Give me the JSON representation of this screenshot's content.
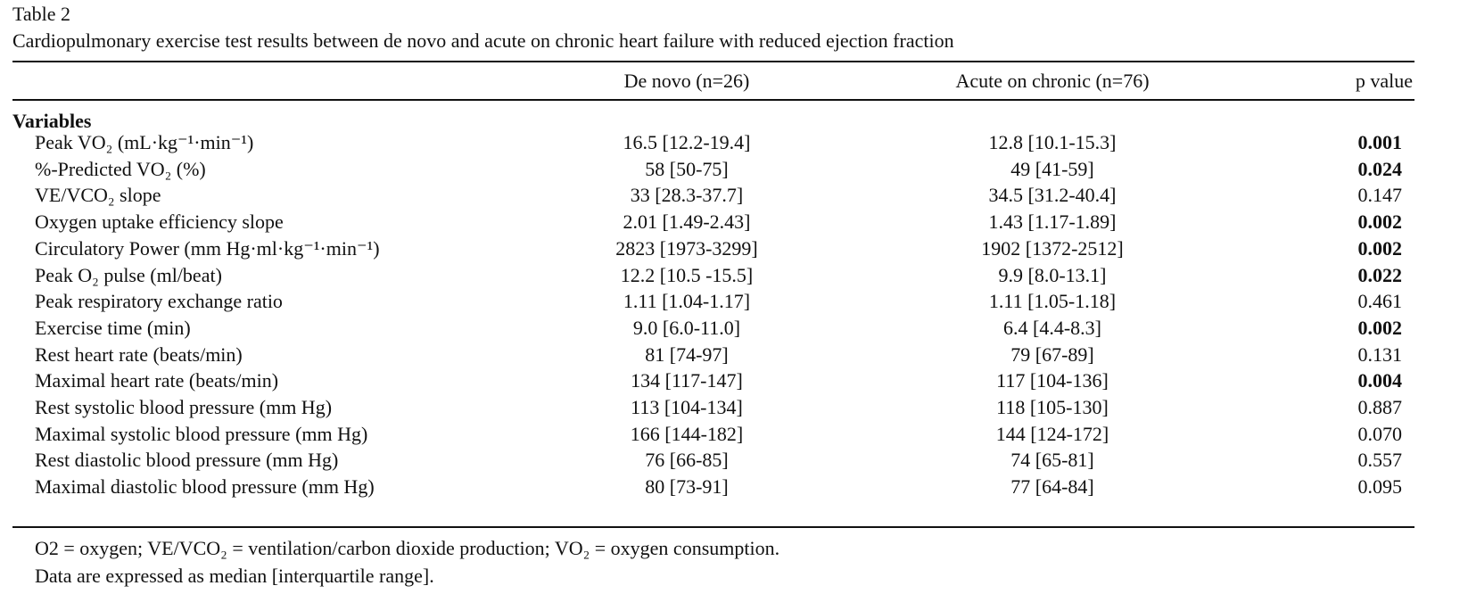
{
  "caption": {
    "label": "Table 2",
    "title": "Cardiopulmonary exercise test results between de novo and acute on chronic heart failure with reduced ejection fraction"
  },
  "header": {
    "de_novo": "De novo (n=26)",
    "acute_on_chronic": "Acute on chronic (n=76)",
    "p_value": "p value"
  },
  "section_title": "Variables",
  "rows": [
    {
      "label": "Peak VO₂ (mL·kg⁻¹·min⁻¹)",
      "de_novo": "16.5 [12.2-19.4]",
      "acute_on_chronic": "12.8 [10.1-15.3]",
      "p": "0.001",
      "significant": true
    },
    {
      "label": "%-Predicted VO₂ (%)",
      "de_novo": "58 [50-75]",
      "acute_on_chronic": "49 [41-59]",
      "p": "0.024",
      "significant": true
    },
    {
      "label": "VE/VCO₂ slope",
      "de_novo": "33 [28.3-37.7]",
      "acute_on_chronic": "34.5 [31.2-40.4]",
      "p": "0.147",
      "significant": false
    },
    {
      "label": "Oxygen uptake efficiency slope",
      "de_novo": "2.01 [1.49-2.43]",
      "acute_on_chronic": "1.43 [1.17-1.89]",
      "p": "0.002",
      "significant": true
    },
    {
      "label": "Circulatory Power (mm Hg·ml·kg⁻¹·min⁻¹)",
      "de_novo": "2823 [1973-3299]",
      "acute_on_chronic": "1902 [1372-2512]",
      "p": "0.002",
      "significant": true
    },
    {
      "label": "Peak O₂ pulse (ml/beat)",
      "de_novo": "12.2 [10.5 -15.5]",
      "acute_on_chronic": "9.9 [8.0-13.1]",
      "p": "0.022",
      "significant": true
    },
    {
      "label": "Peak respiratory exchange ratio",
      "de_novo": "1.11 [1.04-1.17]",
      "acute_on_chronic": "1.11 [1.05-1.18]",
      "p": "0.461",
      "significant": false
    },
    {
      "label": "Exercise time (min)",
      "de_novo": "9.0 [6.0-11.0]",
      "acute_on_chronic": "6.4 [4.4-8.3]",
      "p": "0.002",
      "significant": true
    },
    {
      "label": "Rest heart rate (beats/min)",
      "de_novo": "81 [74-97]",
      "acute_on_chronic": "79 [67-89]",
      "p": "0.131",
      "significant": false
    },
    {
      "label": "Maximal heart rate (beats/min)",
      "de_novo": "134 [117-147]",
      "acute_on_chronic": "117 [104-136]",
      "p": "0.004",
      "significant": true
    },
    {
      "label": "Rest systolic blood pressure (mm Hg)",
      "de_novo": "113 [104-134]",
      "acute_on_chronic": "118 [105-130]",
      "p": "0.887",
      "significant": false
    },
    {
      "label": "Maximal systolic blood pressure (mm Hg)",
      "de_novo": "166 [144-182]",
      "acute_on_chronic": "144 [124-172]",
      "p": "0.070",
      "significant": false
    },
    {
      "label": "Rest diastolic blood pressure (mm Hg)",
      "de_novo": "76 [66-85]",
      "acute_on_chronic": "74 [65-81]",
      "p": "0.557",
      "significant": false
    },
    {
      "label": "Maximal diastolic blood pressure (mm Hg)",
      "de_novo": "80 [73-91]",
      "acute_on_chronic": "77 [64-84]",
      "p": "0.095",
      "significant": false
    }
  ],
  "notes": [
    "O2 = oxygen; VE/VCO₂ = ventilation/carbon dioxide production; VO₂ = oxygen consumption.",
    "Data are expressed as median [interquartile range]."
  ]
}
